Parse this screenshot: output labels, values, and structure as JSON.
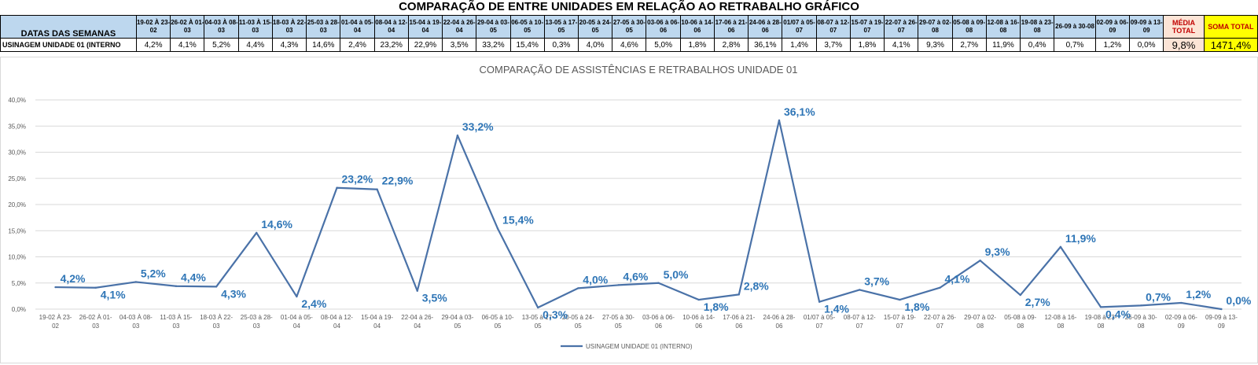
{
  "title": "COMPARAÇÃO DE ENTRE UNIDADES EM RELAÇÃO AO RETRABALHO GRÁFICO",
  "table": {
    "header_label": "DATAS DAS SEMANAS",
    "row_label": "USINAGEM UNIDADE 01 (INTERNO",
    "weeks": [
      "19-02 À 23-02",
      "26-02 À 01-03",
      "04-03 À 08-03",
      "11-03 À 15-03",
      "18-03 À 22-03",
      "25-03 à 28-03",
      "01-04 à 05-04",
      "08-04 à 12-04",
      "15-04 à 19-04",
      "22-04 à 26-04",
      "29-04 à 03-05",
      "06-05 à 10-05",
      "13-05 à 17-05",
      "20-05 à 24-05",
      "27-05 à 30-05",
      "03-06 à 06-06",
      "10-06 à 14-06",
      "17-06 à 21-06",
      "24-06 à 28-06",
      "01/07 à 05-07",
      "08-07 à 12-07",
      "15-07 à 19-07",
      "22-07 à 26-07",
      "29-07 à 02-08",
      "05-08 à 09-08",
      "12-08 à 16-08",
      "19-08 à 23-08",
      "26-09 à 30-08",
      "02-09 à 06-09",
      "09-09 à 13-09"
    ],
    "values": [
      "4,2%",
      "4,1%",
      "5,2%",
      "4,4%",
      "4,3%",
      "14,6%",
      "2,4%",
      "23,2%",
      "22,9%",
      "3,5%",
      "33,2%",
      "15,4%",
      "0,3%",
      "4,0%",
      "4,6%",
      "5,0%",
      "1,8%",
      "2,8%",
      "36,1%",
      "1,4%",
      "3,7%",
      "1,8%",
      "4,1%",
      "9,3%",
      "2,7%",
      "11,9%",
      "0,4%",
      "0,7%",
      "1,2%",
      "0,0%"
    ],
    "avg_label": "MÉDIA TOTAL",
    "avg_value": "9,8%",
    "sum_label": "SOMA TOTAL",
    "sum_value": "1471,4%"
  },
  "chart_data": {
    "type": "line",
    "title": "COMPARAÇÃO DE ASSISTÊNCIAS E RETRABALHOS UNIDADE 01",
    "categories": [
      "19-02 À 23-02",
      "26-02 À 01-03",
      "04-03 À 08-03",
      "11-03 À 15-03",
      "18-03 À 22-03",
      "25-03 à 28-03",
      "01-04 à 05-04",
      "08-04 à 12-04",
      "15-04 à 19-04",
      "22-04 à 26-04",
      "29-04 à 03-05",
      "06-05 à 10-05",
      "13-05 à 17-05",
      "20-05 à 24-05",
      "27-05 à 30-05",
      "03-06 à 06-06",
      "10-06 à 14-06",
      "17-06 à 21-06",
      "24-06 à 28-06",
      "01/07 à 05-07",
      "08-07 à 12-07",
      "15-07 à 19-07",
      "22-07 à 26-07",
      "29-07 à 02-08",
      "05-08 à 09-08",
      "12-08 à 16-08",
      "19-08 à 23-08",
      "26-09 à 30-08",
      "02-09 à 06-09",
      "09-09 à 13-09"
    ],
    "series": [
      {
        "name": "USINAGEM UNIDADE 01 (INTERNO)",
        "values": [
          4.2,
          4.1,
          5.2,
          4.4,
          4.3,
          14.6,
          2.4,
          23.2,
          22.9,
          3.5,
          33.2,
          15.4,
          0.3,
          4.0,
          4.6,
          5.0,
          1.8,
          2.8,
          36.1,
          1.4,
          3.7,
          1.8,
          4.1,
          9.3,
          2.7,
          11.9,
          0.4,
          0.7,
          1.2,
          0.0
        ],
        "data_labels": [
          "4,2%",
          "4,1%",
          "5,2%",
          "4,4%",
          "4,3%",
          "14,6%",
          "2,4%",
          "23,2%",
          "22,9%",
          "3,5%",
          "33,2%",
          "15,4%",
          "0,3%",
          "4,0%",
          "4,6%",
          "5,0%",
          "1,8%",
          "2,8%",
          "36,1%",
          "1,4%",
          "3,7%",
          "1,8%",
          "4,1%",
          "9,3%",
          "2,7%",
          "11,9%",
          "0,4%",
          "0,7%",
          "1,2%",
          "0,0%"
        ],
        "color": "#4a72a8"
      }
    ],
    "yticks": [
      "0,0%",
      "5,0%",
      "10,0%",
      "15,0%",
      "20,0%",
      "25,0%",
      "30,0%",
      "35,0%",
      "40,0%"
    ],
    "ylim": [
      0,
      40
    ],
    "grid": true,
    "legend": "bottom",
    "label_color": "#2e75b6"
  }
}
